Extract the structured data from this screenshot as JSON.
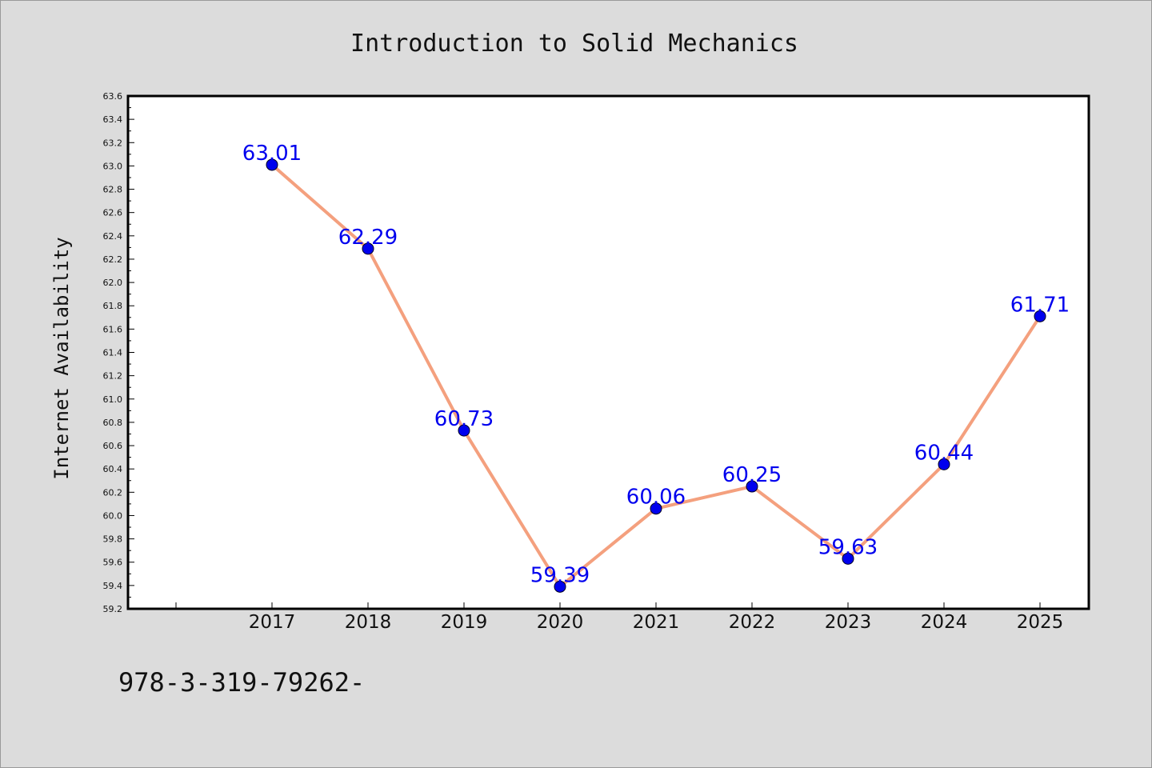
{
  "page": {
    "background": "#dcdcdc",
    "footer_text": "978-3-319-79262-"
  },
  "chart_data": {
    "type": "line",
    "title": "Introduction to Solid Mechanics",
    "xlabel": "",
    "ylabel": "Internet Availability",
    "categories": [
      "2017",
      "2018",
      "2019",
      "2020",
      "2021",
      "2022",
      "2023",
      "2024",
      "2025"
    ],
    "series": [
      {
        "values": [
          63.01,
          62.29,
          60.73,
          59.39,
          60.06,
          60.25,
          59.63,
          60.44,
          61.71
        ],
        "line_color": "#f4a07e",
        "marker_color": "#0000ee",
        "label_color": "#0000ee"
      }
    ],
    "data_labels": [
      "63.01",
      "62.29",
      "60.73",
      "59.39",
      "60.06",
      "60.25",
      "59.63",
      "60.44",
      "61.71"
    ],
    "ylim": [
      59.2,
      63.6
    ],
    "yticks": [
      "59.2",
      "59.4",
      "59.6",
      "59.8",
      "60.0",
      "60.2",
      "60.4",
      "60.6",
      "60.8",
      "61.0",
      "61.2",
      "61.4",
      "61.6",
      "61.8",
      "62.0",
      "62.2",
      "62.4",
      "62.6",
      "62.8",
      "63.0",
      "63.2",
      "63.4",
      "63.6"
    ],
    "grid": false,
    "legend": "none"
  }
}
